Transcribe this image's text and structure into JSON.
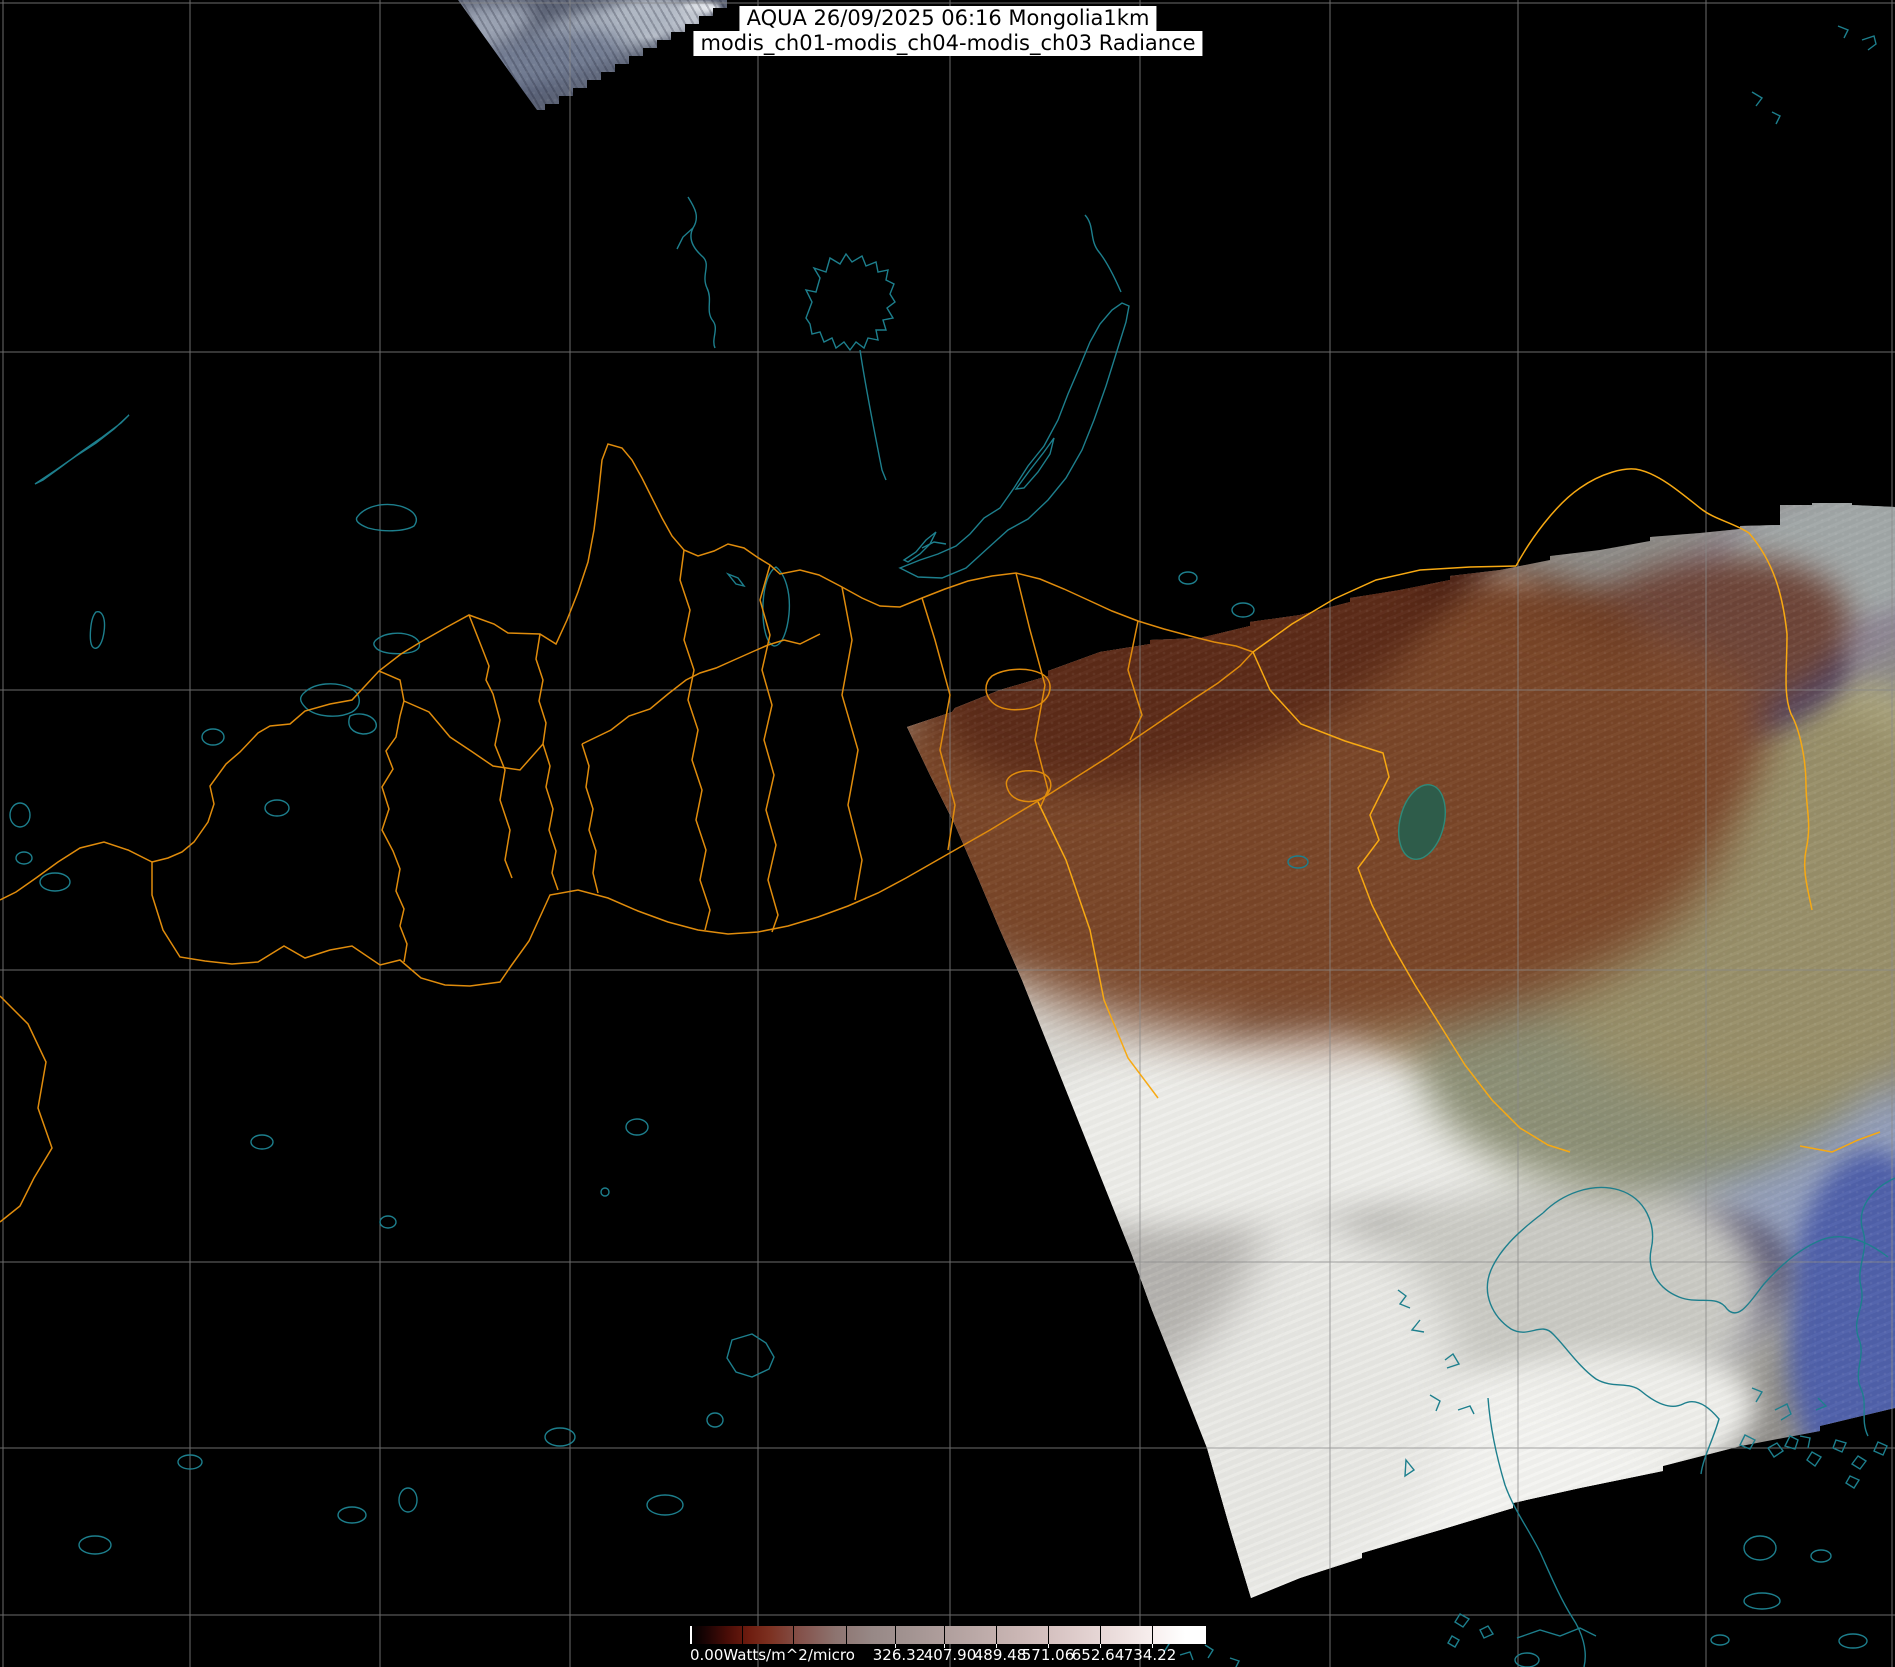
{
  "header": {
    "line1": "AQUA 26/09/2025 06:16 Mongolia1km",
    "line2": "modis_ch01-modis_ch04-modis_ch03 Radiance"
  },
  "colorbar": {
    "unit_label": "0.00Watts/m^2/micro",
    "tick_labels": [
      "326.32",
      "407.90",
      "489.48",
      "571.06",
      "652.64",
      "734.22"
    ]
  },
  "map": {
    "colors": {
      "background": "#000000",
      "graticule": "#8a8a8a",
      "coastline_teal": "#1d7f8d",
      "border_orange": "#e08c0c",
      "border_orange_bright": "#f7a912",
      "title_text": "#000000",
      "title_background": "#ffffff",
      "label_text": "#ffffff"
    }
  }
}
